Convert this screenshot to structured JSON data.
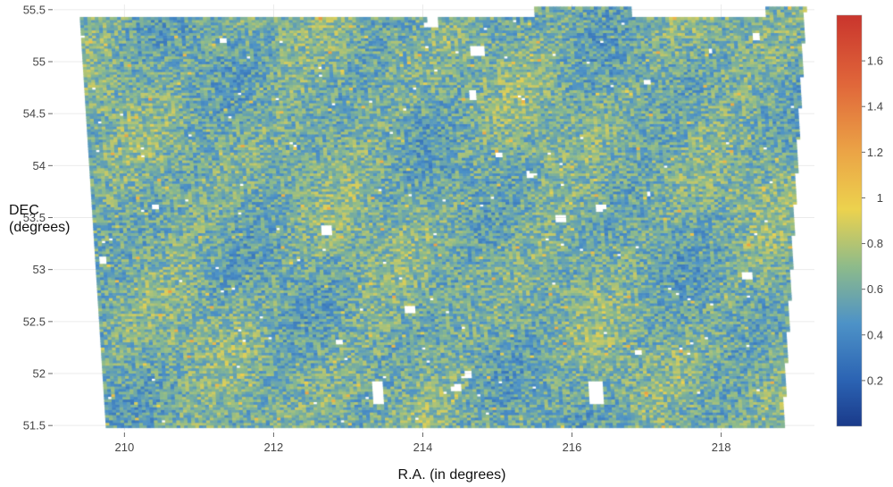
{
  "chart_data": {
    "type": "heatmap",
    "title": "",
    "xlabel": "R.A. (in degrees)",
    "ylabel_lines": [
      "DEC",
      "(degrees)"
    ],
    "xlim": [
      209.05,
      219.25
    ],
    "ylim": [
      51.45,
      55.55
    ],
    "x_ticks": [
      210,
      212,
      214,
      216,
      218
    ],
    "x_tick_labels": [
      "210",
      "212",
      "214",
      "216",
      "218"
    ],
    "y_ticks": [
      51.5,
      52,
      52.5,
      53,
      53.5,
      54,
      54.5,
      55,
      55.5
    ],
    "y_tick_labels": [
      "51.5",
      "52",
      "52.5",
      "53",
      "53.5",
      "54",
      "54.5",
      "55",
      "55.5"
    ],
    "grid": true,
    "cell_size_deg": {
      "ra": 0.05,
      "dec": 0.025
    },
    "value_range": [
      0.0,
      1.8
    ],
    "typical_value_range": [
      0.3,
      1.0
    ],
    "footprint_corners": {
      "top_left": [
        209.4,
        55.43
      ],
      "top_right": [
        219.1,
        55.53
      ],
      "bottom_left": [
        209.75,
        51.48
      ],
      "bottom_right": [
        218.8,
        51.48
      ]
    },
    "masked_regions": [
      {
        "ra": 213.4,
        "dec": 51.81,
        "ra_half": 0.08,
        "dec_half": 0.11
      },
      {
        "ra": 216.32,
        "dec": 51.81,
        "ra_half": 0.09,
        "dec_half": 0.11
      },
      {
        "ra": 214.73,
        "dec": 55.1,
        "ra_half": 0.11,
        "dec_half": 0.05
      },
      {
        "ra": 214.12,
        "dec": 55.38,
        "ra_half": 0.09,
        "dec_half": 0.05
      },
      {
        "ra": 218.1,
        "dec": 55.48,
        "ra_half": 0.1,
        "dec_half": 0.06
      },
      {
        "ra": 218.45,
        "dec": 55.25,
        "ra_half": 0.05,
        "dec_half": 0.04
      },
      {
        "ra": 213.82,
        "dec": 52.62,
        "ra_half": 0.06,
        "dec_half": 0.04
      },
      {
        "ra": 214.6,
        "dec": 52.0,
        "ra_half": 0.07,
        "dec_half": 0.04
      },
      {
        "ra": 214.45,
        "dec": 51.86,
        "ra_half": 0.06,
        "dec_half": 0.04
      },
      {
        "ra": 215.83,
        "dec": 53.5,
        "ra_half": 0.07,
        "dec_half": 0.04
      },
      {
        "ra": 216.38,
        "dec": 53.59,
        "ra_half": 0.06,
        "dec_half": 0.04
      },
      {
        "ra": 212.7,
        "dec": 53.38,
        "ra_half": 0.06,
        "dec_half": 0.04
      },
      {
        "ra": 209.7,
        "dec": 53.1,
        "ra_half": 0.05,
        "dec_half": 0.04
      },
      {
        "ra": 215.45,
        "dec": 53.91,
        "ra_half": 0.06,
        "dec_half": 0.03
      },
      {
        "ra": 218.35,
        "dec": 52.95,
        "ra_half": 0.06,
        "dec_half": 0.04
      },
      {
        "ra": 214.65,
        "dec": 54.68,
        "ra_half": 0.05,
        "dec_half": 0.04
      },
      {
        "ra": 211.3,
        "dec": 55.2,
        "ra_half": 0.05,
        "dec_half": 0.03
      },
      {
        "ra": 215.0,
        "dec": 54.1,
        "ra_half": 0.05,
        "dec_half": 0.03
      },
      {
        "ra": 217.0,
        "dec": 54.8,
        "ra_half": 0.05,
        "dec_half": 0.03
      },
      {
        "ra": 210.4,
        "dec": 53.6,
        "ra_half": 0.05,
        "dec_half": 0.03
      },
      {
        "ra": 212.9,
        "dec": 52.3,
        "ra_half": 0.05,
        "dec_half": 0.03
      },
      {
        "ra": 216.9,
        "dec": 52.2,
        "ra_half": 0.05,
        "dec_half": 0.03
      }
    ],
    "colorbar": {
      "ticks": [
        0.2,
        0.4,
        0.6,
        0.8,
        1.0,
        1.2,
        1.4,
        1.6
      ],
      "tick_labels": [
        "0.2",
        "0.4",
        "0.6",
        "0.8",
        "1",
        "1.2",
        "1.4",
        "1.6"
      ],
      "color_stops": [
        {
          "value": 0.0,
          "color": "#1a3a8a"
        },
        {
          "value": 0.2,
          "color": "#2b63b3"
        },
        {
          "value": 0.45,
          "color": "#4d92c7"
        },
        {
          "value": 0.7,
          "color": "#8ebb8a"
        },
        {
          "value": 0.95,
          "color": "#ecd24e"
        },
        {
          "value": 1.2,
          "color": "#eba446"
        },
        {
          "value": 1.5,
          "color": "#e0663a"
        },
        {
          "value": 1.8,
          "color": "#c9352d"
        }
      ]
    }
  }
}
